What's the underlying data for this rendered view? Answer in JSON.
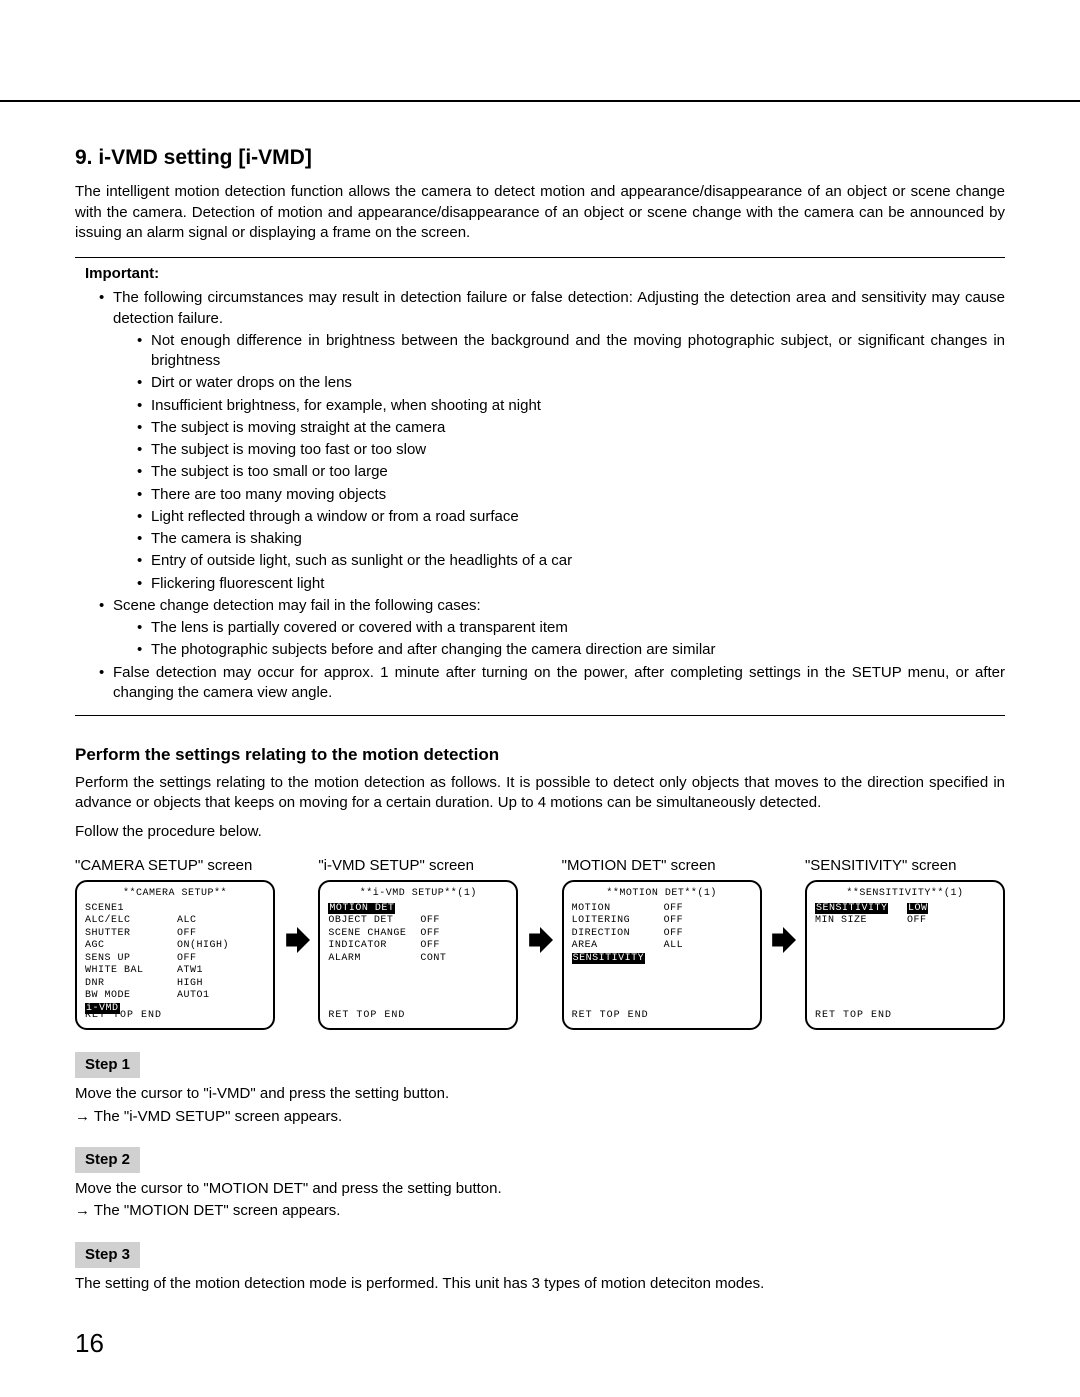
{
  "page_number": "16",
  "heading": "9. i-VMD setting [i-VMD]",
  "intro": "The intelligent motion detection function allows the camera to detect motion and appearance/disappearance of an object or scene change with the camera. Detection of motion and appearance/disappearance of an object or scene change with the camera can be announced by issuing an alarm signal or displaying a frame on the screen.",
  "important": {
    "label": "Important:",
    "bullets_l1": [
      "The following circumstances may result in detection failure or false detection: Adjusting the detection area and sensitivity may cause detection failure.",
      "Scene change detection may fail in the following cases:",
      "False detection may occur for approx. 1 minute after turning on the power, after completing settings in the SETUP menu, or after changing the camera view angle."
    ],
    "bullets_l2_group1": [
      "Not enough difference in brightness between the background and the moving photographic subject, or significant changes in brightness",
      "Dirt or water drops on the lens",
      "Insufficient brightness, for example, when shooting at night",
      "The subject is moving straight at the camera",
      "The subject is moving too fast or too slow",
      "The subject is too small or too large",
      "There are too many moving objects",
      "Light reflected through a window or from a road surface",
      "The camera is shaking",
      "Entry of outside light, such as sunlight or the headlights of a car",
      "Flickering fluorescent light"
    ],
    "bullets_l2_group2": [
      "The lens is partially covered or covered with a transparent item",
      "The photographic subjects before and after changing the camera direction are similar"
    ]
  },
  "subheading": "Perform the settings relating to the motion detection",
  "subintro": "Perform the settings relating to the motion detection as follows. It is possible to detect only objects that moves to the direction specified in advance or objects that keeps on moving for a certain duration. Up to 4 motions can be simultaneously detected.",
  "follow": "Follow the procedure below.",
  "screens": {
    "camera": {
      "title": "\"CAMERA SETUP\" screen",
      "header": "**CAMERA SETUP**",
      "rows": [
        [
          "SCENE1",
          ""
        ],
        [
          "ALC/ELC",
          "ALC"
        ],
        [
          "SHUTTER",
          "OFF"
        ],
        [
          "AGC",
          "ON(HIGH)"
        ],
        [
          "SENS UP",
          "OFF"
        ],
        [
          "WHITE BAL",
          "ATW1"
        ],
        [
          "DNR",
          "HIGH"
        ],
        [
          "BW MODE",
          "AUTO1"
        ],
        [
          "i-VMD",
          ""
        ]
      ],
      "hl_row": 8,
      "footer": "RET TOP END"
    },
    "ivmd": {
      "title": "\"i-VMD SETUP\" screen",
      "header": "**i-VMD SETUP**(1)",
      "rows": [
        [
          "MOTION DET",
          ""
        ],
        [
          "OBJECT DET",
          "OFF"
        ],
        [
          "SCENE CHANGE",
          "OFF"
        ],
        [
          "",
          ""
        ],
        [
          "INDICATOR",
          "OFF"
        ],
        [
          "ALARM",
          "CONT"
        ]
      ],
      "hl_row": 0,
      "footer": "RET TOP END"
    },
    "motion": {
      "title": "\"MOTION DET\" screen",
      "header": "**MOTION DET**(1)",
      "rows": [
        [
          "MOTION",
          "OFF"
        ],
        [
          "LOITERING",
          "OFF"
        ],
        [
          "DIRECTION",
          "OFF"
        ],
        [
          "",
          ""
        ],
        [
          "AREA",
          "ALL"
        ],
        [
          "SENSITIVITY",
          ""
        ]
      ],
      "hl_row": 5,
      "footer": "RET TOP END"
    },
    "sens": {
      "title": "\"SENSITIVITY\" screen",
      "header": "**SENSITIVITY**(1)",
      "rows": [
        [
          "SENSITIVITY",
          "LOW"
        ],
        [
          "MIN SIZE",
          "OFF"
        ]
      ],
      "hl_row": 0,
      "hl_col2": true,
      "footer": "RET TOP END"
    }
  },
  "steps": [
    {
      "label": "Step 1",
      "text": "Move the cursor to \"i-VMD\" and press the setting button.",
      "result": "→ The \"i-VMD SETUP\" screen appears."
    },
    {
      "label": "Step 2",
      "text": "Move the cursor to \"MOTION DET\" and press the setting button.",
      "result": "→ The \"MOTION DET\" screen appears."
    },
    {
      "label": "Step 3",
      "text": "The setting of the motion detection mode is performed. This unit has 3 types of motion deteciton modes.",
      "result": ""
    }
  ],
  "colors": {
    "text": "#000000",
    "background": "#ffffff",
    "step_bg": "#d0d0d0",
    "highlight_bg": "#000000",
    "highlight_fg": "#ffffff"
  }
}
